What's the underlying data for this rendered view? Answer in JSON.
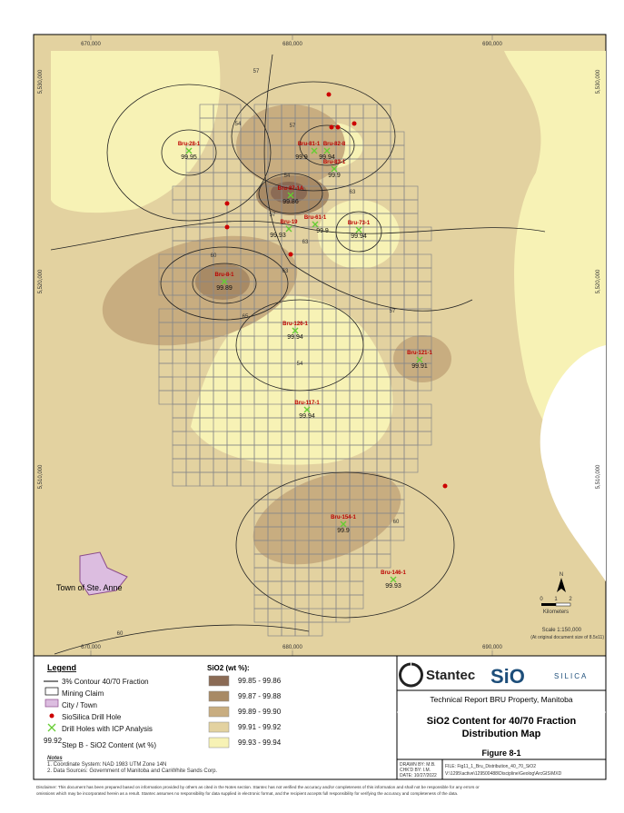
{
  "map": {
    "grid_labels_x": [
      "670,000",
      "680,000",
      "690,000"
    ],
    "grid_labels_y": [
      "5,530,000",
      "5,520,000",
      "5,510,000"
    ],
    "drill_holes": [
      {
        "name": "Bru-28-1",
        "value": 99.95
      },
      {
        "name": "Bru-81-1",
        "value": 99.9
      },
      {
        "name": "Bru-82-8",
        "value": 99.94
      },
      {
        "name": "Bru-83-1",
        "value": 99.9
      },
      {
        "name": "Bru-87-1A",
        "value": 99.86
      },
      {
        "name": "Bru-19",
        "value": 99.93
      },
      {
        "name": "Bru-61-1",
        "value": 99.9
      },
      {
        "name": "Bru-73-1",
        "value": 99.94
      },
      {
        "name": "Bru-8-1",
        "value": 99.89
      },
      {
        "name": "Bru-126-1",
        "value": 99.94
      },
      {
        "name": "Bru-121-1",
        "value": 99.91
      },
      {
        "name": "Bru-117-1",
        "value": 99.94
      },
      {
        "name": "Bru-154-1",
        "value": 99.9
      },
      {
        "name": "Bru-146-1",
        "value": 99.93
      }
    ],
    "contour_labels": [
      57,
      54,
      57,
      54,
      63,
      57,
      60,
      63,
      65,
      63,
      57,
      54,
      60,
      60
    ],
    "town": "Town of Ste. Anne",
    "north": "N",
    "scale_ticks": [
      "0",
      "1",
      "2"
    ],
    "scale_unit": "Kilometers",
    "scale": "Scale 1:150,000",
    "scale_note": "(At original document size of 8.5x11)"
  },
  "legend": {
    "title": "Legend",
    "items": [
      "3% Contour 40/70 Fraction",
      "Mining Claim",
      "City / Town",
      "SioSilica Drill Hole",
      "Drill Holes with ICP Analysis"
    ],
    "sample_value": "99.92",
    "sample_label": "Step B - SiO2 Content (wt %)",
    "notes_title": "Notes",
    "notes": [
      "1. Coordinate System: NAD 1983 UTM Zone 14N",
      "2. Data Sources: Government of Manitoba and CanWhite Sands Corp."
    ],
    "sio2_title": "SiO2 (wt %):",
    "sio2_classes": [
      "99.85 - 99.86",
      "99.87 - 99.88",
      "99.89 - 99.90",
      "99.91 - 99.92",
      "99.93 - 99.94"
    ]
  },
  "title_block": {
    "company": "Stantec",
    "logo": "SiO",
    "logo_word": "SILICA",
    "report": "Technical Report BRU Property, Manitoba",
    "title_lines": [
      "SiO2 Content for 40/70 Fraction",
      "Distribution Map"
    ],
    "figure": "Figure 8-1",
    "drawn": [
      "DRAWN BY: M.B.",
      "CHK'D BY: I.M.",
      "DATE: 10/27/2022"
    ],
    "file": "FILE: Fig11_1_Bru_Distribution_40_70_SiO2",
    "path": "V:\\1295\\active\\129500488\\Discipline\\Geolog\\ArcGIS\\MXD"
  },
  "disclaimer": [
    "Disclaimer: This document has been prepared based on information provided by others as cited in the Notes section. Stantec has not verified the accuracy and/or completeness of this information and shall not be responsible for any errors or",
    "omissions which may be incorporated herein as a result. Stantec assumes no responsibility for data supplied in electronic format, and the recipient accepts full responsibility for verifying the accuracy and completeness of the data."
  ]
}
